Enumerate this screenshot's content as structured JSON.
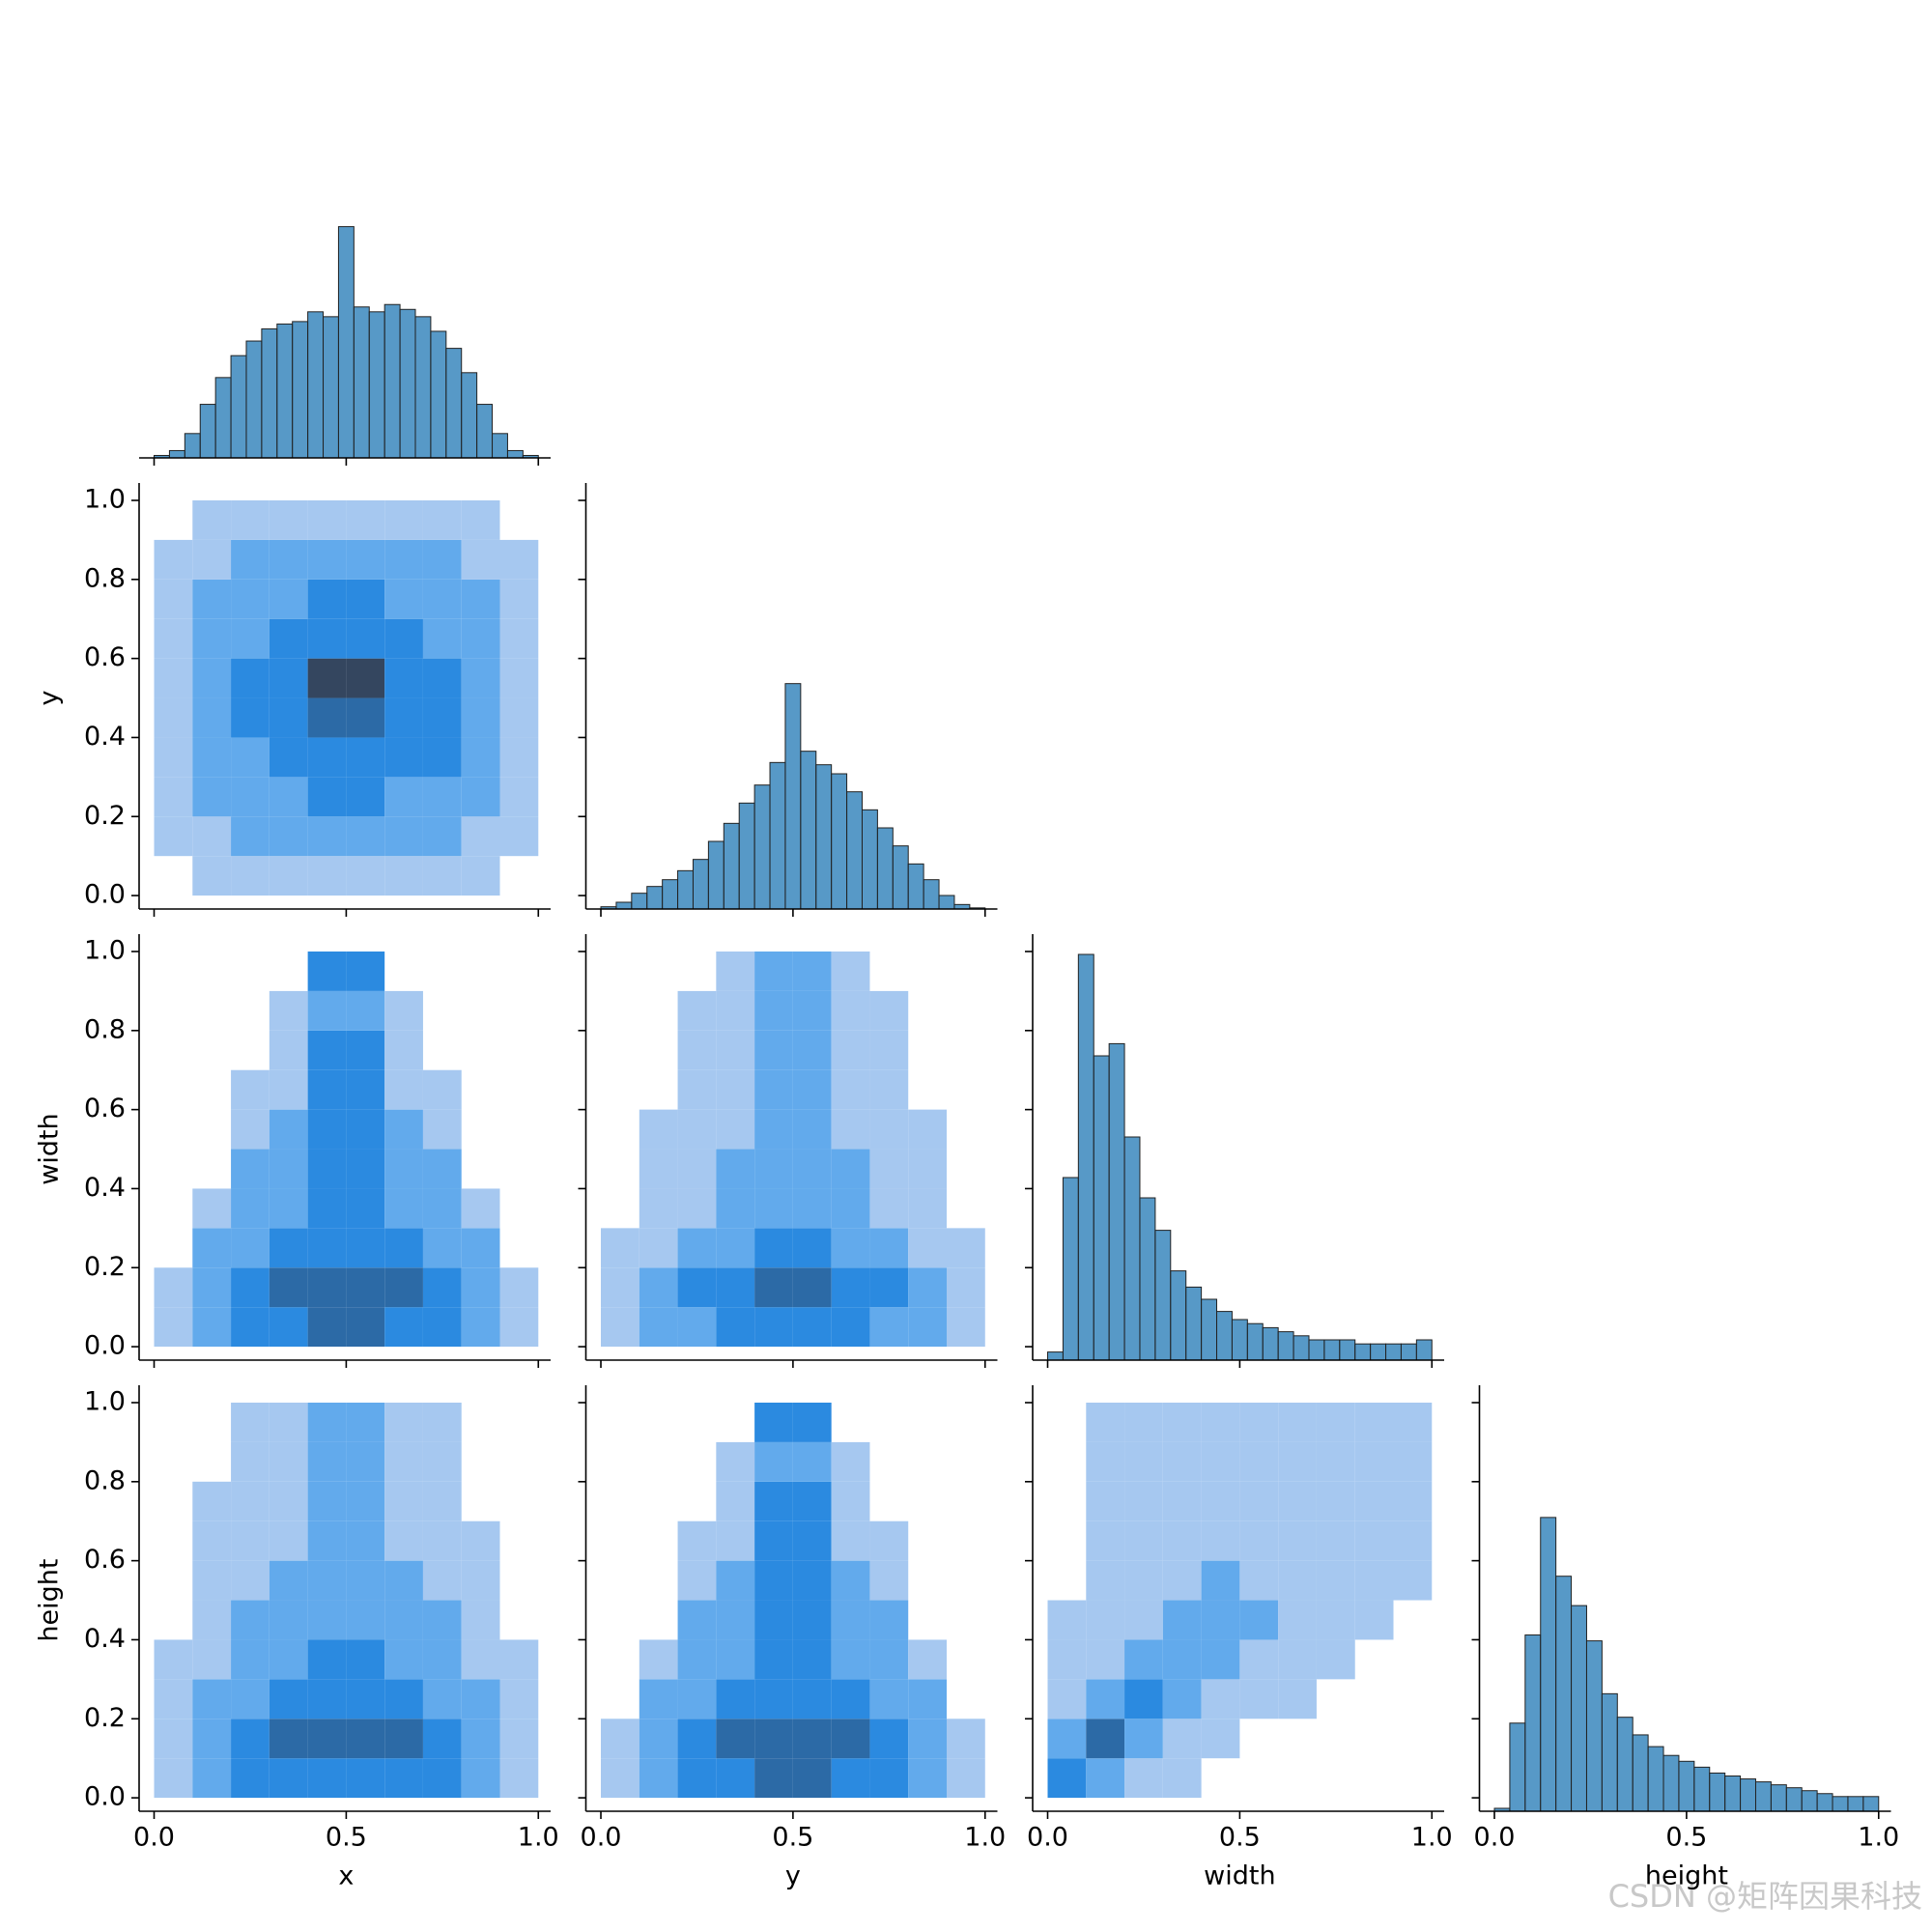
{
  "chart_data": {
    "type": "pairplot",
    "variables": [
      "x",
      "y",
      "width",
      "height"
    ],
    "xlim": [
      -0.039,
      1.032
    ],
    "ylim": [
      -0.034,
      1.044
    ],
    "xticks": [
      {
        "value": 0,
        "label": "0.0"
      },
      {
        "value": 0.5,
        "label": "0.5"
      },
      {
        "value": 1,
        "label": "1.0"
      }
    ],
    "yticks": [
      {
        "value": 0,
        "label": "0.0"
      },
      {
        "value": 0.2,
        "label": "0.2"
      },
      {
        "value": 0.4,
        "label": "0.4"
      },
      {
        "value": 0.6,
        "label": "0.6"
      },
      {
        "value": 0.8,
        "label": "0.8"
      },
      {
        "value": 1,
        "label": "1.0"
      }
    ],
    "color": "#1f77b4",
    "cmap": [
      "#a6c8f0",
      "#62aaec",
      "#2b8ae0",
      "#2c6aa6",
      "#34465f"
    ],
    "bins": [
      0,
      0.04,
      0.08,
      0.12,
      0.16,
      0.2,
      0.24,
      0.28,
      0.32,
      0.36,
      0.4,
      0.44,
      0.48,
      0.52,
      0.56,
      0.6,
      0.64,
      0.68,
      0.72,
      0.76,
      0.8,
      0.84,
      0.88,
      0.92,
      0.96,
      1
    ],
    "histograms": [
      {
        "counts": [
          1,
          3,
          10,
          22,
          33,
          42,
          48,
          53,
          55,
          56,
          60,
          58,
          95,
          62,
          60,
          63,
          61,
          58,
          52,
          45,
          35,
          22,
          10,
          3,
          1
        ],
        "ylim": [
          0,
          175
        ]
      },
      {
        "counts": [
          1,
          3,
          7,
          10,
          13,
          17,
          22,
          30,
          38,
          47,
          55,
          65,
          100,
          70,
          64,
          60,
          52,
          44,
          36,
          28,
          20,
          13,
          6,
          2,
          0.5
        ],
        "ylim": [
          0,
          189
        ]
      },
      {
        "counts": [
          2,
          45,
          100,
          75,
          78,
          55,
          40,
          32,
          22,
          18,
          15,
          12,
          10,
          9,
          8,
          7,
          6,
          5,
          5,
          5,
          4,
          4,
          4,
          4,
          5
        ],
        "ylim": [
          0,
          105
        ]
      },
      {
        "counts": [
          1,
          30,
          60,
          100,
          80,
          70,
          58,
          40,
          32,
          26,
          22,
          19,
          17,
          15,
          13,
          12,
          11,
          10,
          9,
          8,
          7,
          6,
          5,
          5,
          5
        ],
        "ylim": [
          0,
          145
        ]
      }
    ],
    "bins2d": [
      0,
      0.1,
      0.2,
      0.3,
      0.4,
      0.5,
      0.6,
      0.7,
      0.8,
      0.9,
      1
    ],
    "hist2d": [
      {
        "density": [
          [
            0,
            1,
            1,
            1,
            1,
            1,
            1,
            1,
            1,
            0
          ],
          [
            1,
            1,
            2,
            2,
            2,
            2,
            2,
            2,
            1,
            1
          ],
          [
            1,
            2,
            2,
            2,
            3,
            3,
            2,
            2,
            2,
            1
          ],
          [
            1,
            2,
            2,
            3,
            3,
            3,
            3,
            3,
            2,
            1
          ],
          [
            1,
            2,
            3,
            3,
            4,
            4,
            3,
            3,
            2,
            1
          ],
          [
            1,
            2,
            3,
            3,
            5,
            5,
            3,
            3,
            2,
            1
          ],
          [
            1,
            2,
            2,
            3,
            3,
            3,
            3,
            2,
            2,
            1
          ],
          [
            1,
            2,
            2,
            2,
            3,
            3,
            2,
            2,
            2,
            1
          ],
          [
            1,
            1,
            2,
            2,
            2,
            2,
            2,
            2,
            1,
            1
          ],
          [
            0,
            1,
            1,
            1,
            1,
            1,
            1,
            1,
            1,
            0
          ]
        ]
      },
      {
        "density": [
          [
            1,
            2,
            3,
            3,
            4,
            4,
            3,
            3,
            2,
            1
          ],
          [
            1,
            2,
            3,
            4,
            4,
            4,
            4,
            3,
            2,
            1
          ],
          [
            0,
            2,
            2,
            3,
            3,
            3,
            3,
            2,
            2,
            0
          ],
          [
            0,
            1,
            2,
            2,
            3,
            3,
            2,
            2,
            1,
            0
          ],
          [
            0,
            0,
            2,
            2,
            3,
            3,
            2,
            2,
            0,
            0
          ],
          [
            0,
            0,
            1,
            2,
            3,
            3,
            2,
            1,
            0,
            0
          ],
          [
            0,
            0,
            1,
            1,
            3,
            3,
            1,
            1,
            0,
            0
          ],
          [
            0,
            0,
            0,
            1,
            3,
            3,
            1,
            0,
            0,
            0
          ],
          [
            0,
            0,
            0,
            1,
            2,
            2,
            1,
            0,
            0,
            0
          ],
          [
            0,
            0,
            0,
            0,
            3,
            3,
            0,
            0,
            0,
            0
          ]
        ]
      },
      {
        "density": [
          [
            1,
            2,
            2,
            3,
            3,
            3,
            3,
            2,
            2,
            1
          ],
          [
            1,
            2,
            3,
            3,
            4,
            4,
            3,
            3,
            2,
            1
          ],
          [
            1,
            1,
            2,
            2,
            3,
            3,
            2,
            2,
            1,
            1
          ],
          [
            0,
            1,
            1,
            2,
            2,
            2,
            2,
            1,
            1,
            0
          ],
          [
            0,
            1,
            1,
            2,
            2,
            2,
            2,
            1,
            1,
            0
          ],
          [
            0,
            1,
            1,
            1,
            2,
            2,
            1,
            1,
            1,
            0
          ],
          [
            0,
            0,
            1,
            1,
            2,
            2,
            1,
            1,
            0,
            0
          ],
          [
            0,
            0,
            1,
            1,
            2,
            2,
            1,
            1,
            0,
            0
          ],
          [
            0,
            0,
            1,
            1,
            2,
            2,
            1,
            1,
            0,
            0
          ],
          [
            0,
            0,
            0,
            1,
            2,
            2,
            1,
            0,
            0,
            0
          ]
        ]
      },
      {
        "density": [
          [
            1,
            2,
            3,
            3,
            3,
            3,
            3,
            3,
            2,
            1
          ],
          [
            1,
            2,
            3,
            4,
            4,
            4,
            4,
            3,
            2,
            1
          ],
          [
            1,
            2,
            2,
            3,
            3,
            3,
            3,
            2,
            2,
            1
          ],
          [
            1,
            1,
            2,
            2,
            3,
            3,
            2,
            2,
            1,
            1
          ],
          [
            0,
            1,
            2,
            2,
            2,
            2,
            2,
            2,
            1,
            0
          ],
          [
            0,
            1,
            1,
            2,
            2,
            2,
            2,
            1,
            1,
            0
          ],
          [
            0,
            1,
            1,
            1,
            2,
            2,
            1,
            1,
            1,
            0
          ],
          [
            0,
            1,
            1,
            1,
            2,
            2,
            1,
            1,
            0,
            0
          ],
          [
            0,
            0,
            1,
            1,
            2,
            2,
            1,
            1,
            0,
            0
          ],
          [
            0,
            0,
            1,
            1,
            2,
            2,
            1,
            1,
            0,
            0
          ]
        ]
      },
      {
        "density": [
          [
            1,
            2,
            3,
            3,
            4,
            4,
            3,
            3,
            2,
            1
          ],
          [
            1,
            2,
            3,
            4,
            4,
            4,
            4,
            3,
            2,
            1
          ],
          [
            0,
            2,
            2,
            3,
            3,
            3,
            3,
            2,
            2,
            0
          ],
          [
            0,
            1,
            2,
            2,
            3,
            3,
            2,
            2,
            1,
            0
          ],
          [
            0,
            0,
            2,
            2,
            3,
            3,
            2,
            2,
            0,
            0
          ],
          [
            0,
            0,
            1,
            2,
            3,
            3,
            2,
            1,
            0,
            0
          ],
          [
            0,
            0,
            1,
            1,
            3,
            3,
            1,
            1,
            0,
            0
          ],
          [
            0,
            0,
            0,
            1,
            3,
            3,
            1,
            0,
            0,
            0
          ],
          [
            0,
            0,
            0,
            1,
            2,
            2,
            1,
            0,
            0,
            0
          ],
          [
            0,
            0,
            0,
            0,
            3,
            3,
            0,
            0,
            0,
            0
          ]
        ]
      },
      {
        "density": [
          [
            3,
            2,
            1,
            1,
            0,
            0,
            0,
            0,
            0,
            0
          ],
          [
            2,
            4,
            2,
            1,
            1,
            0,
            0,
            0,
            0,
            0
          ],
          [
            1,
            2,
            3,
            2,
            1,
            1,
            1,
            0,
            0,
            0
          ],
          [
            1,
            1,
            2,
            2,
            2,
            1,
            1,
            1,
            0,
            0
          ],
          [
            1,
            1,
            1,
            2,
            2,
            2,
            1,
            1,
            1,
            0
          ],
          [
            0,
            1,
            1,
            1,
            2,
            1,
            1,
            1,
            1,
            1
          ],
          [
            0,
            1,
            1,
            1,
            1,
            1,
            1,
            1,
            1,
            1
          ],
          [
            0,
            1,
            1,
            1,
            1,
            1,
            1,
            1,
            1,
            1
          ],
          [
            0,
            1,
            1,
            1,
            1,
            1,
            1,
            1,
            1,
            1
          ],
          [
            0,
            1,
            1,
            1,
            1,
            1,
            1,
            1,
            1,
            1
          ]
        ]
      }
    ],
    "watermark": "CSDN @矩阵因果科技"
  }
}
